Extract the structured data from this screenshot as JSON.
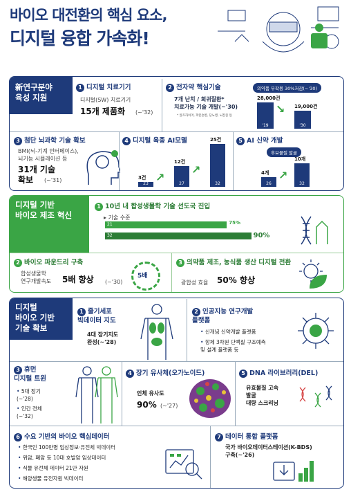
{
  "title": {
    "line1": "바이오 대전환의 핵심 요소,",
    "line2": "디지털 융합 가속화!"
  },
  "s1": {
    "header": "新연구분야\n육성 지원",
    "b1": {
      "num": "1",
      "title": "디지털 치료기기",
      "desc": "디지털(SW) 치료기기",
      "value": "15개 제품화",
      "note": "(~'32)"
    },
    "b2": {
      "num": "2",
      "title": "전자약 핵심기술",
      "pill": "의약품 부작용 30%저감(~'30)",
      "desc": "7개 난치 / 희귀질환*\n치료가능 기술 개발(~'30)",
      "footnote": "* 알츠하이머, 파킨슨병, 당뇨병, 뇌전증 등",
      "chart": {
        "categories": [
          "'19",
          "'30"
        ],
        "values": [
          28000,
          19000
        ],
        "labels": [
          "28,000건",
          "19,000건"
        ]
      }
    },
    "b3": {
      "num": "3",
      "title": "첨단 뇌과학 기술 확보",
      "desc": "BMI(뇌-기계 인터페이스),\n뇌기능 시뮬레이션 등",
      "value": "31개 기술\n확보",
      "note": "(~'31)"
    },
    "b4": {
      "num": "4",
      "title": "디지털 육종 AI모델",
      "chart": {
        "categories": [
          "23",
          "27",
          "32"
        ],
        "values": [
          3,
          12,
          25
        ],
        "labels": [
          "3건",
          "12건",
          "25건"
        ]
      }
    },
    "b5": {
      "num": "5",
      "title": "AI 신약 개발",
      "pill": "후보물질 발굴",
      "chart": {
        "categories": [
          "26",
          "32"
        ],
        "values": [
          4,
          10
        ],
        "labels": [
          "4개",
          "10개"
        ]
      }
    }
  },
  "s2": {
    "header": "디지털 기반\n바이오 제조 혁신",
    "b1": {
      "num": "1",
      "title": "10년 내 합성생물학 기술 선도국 진입",
      "sub": "기술 수준",
      "chart": {
        "categories": [
          "21",
          "32"
        ],
        "values": [
          75,
          90
        ],
        "labels": [
          "75%",
          "90%"
        ]
      }
    },
    "b2": {
      "num": "2",
      "title": "바이오 파운드리 구축",
      "desc": "합성생물학\n연구개발속도",
      "value": "5배 향상",
      "note": "(~'30)",
      "icon_text": "5배"
    },
    "b3": {
      "num": "3",
      "title": "의약품 제조, 농식품 생산 디지털 전환",
      "desc": "광합성 효율",
      "value": "50% 향상"
    }
  },
  "s3": {
    "header": "디지털\n바이오 기반\n기술 확보",
    "b1": {
      "num": "1",
      "title": "줄기세포\n빅데이터 지도",
      "desc": "4대 장기지도\n완성(~'28)"
    },
    "b2": {
      "num": "2",
      "title": "인공지능 연구개발\n플랫폼",
      "items": [
        "신개념 신약개발 플랫폼",
        "항체 3차원 단백질 구조예측\n및 설계 플랫폼 등"
      ]
    },
    "b3": {
      "num": "3",
      "title": "휴먼\n디지털 트윈",
      "items": [
        "5대 장기\n(~'28)",
        "인간 전체\n(~'32)"
      ]
    },
    "b4": {
      "num": "4",
      "title": "장기 유사체(오가노이드)",
      "desc": "인체 유사도",
      "value": "90%",
      "note": "(~'27)"
    },
    "b5": {
      "num": "5",
      "title": "DNA 라이브러리(DEL)",
      "desc": "유효물질 고속\n발굴\n대량 스크리닝"
    },
    "b6": {
      "num": "6",
      "title": "수요 기반의 바이오 핵심데이터",
      "items": [
        "한국인 100만명 임상정보·유전체 빅데이터",
        "위암, 폐암 등 10대 호발암 임상데이터",
        "식물 유전체 데이터 21만 자원",
        "해양생물 유전자원 빅데이터"
      ]
    },
    "b7": {
      "num": "7",
      "title": "데이터 통합 플랫폼",
      "desc": "국가 바이오데이터스테이션(K-BDS)\n구축(~'26)"
    }
  },
  "colors": {
    "navy": "#1e3a7a",
    "green": "#3aa545"
  }
}
